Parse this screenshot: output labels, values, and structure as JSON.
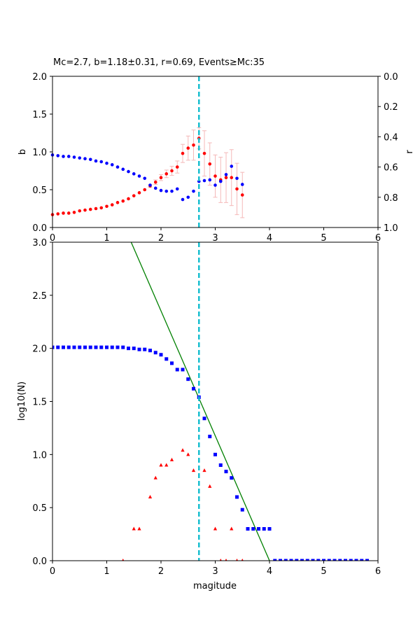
{
  "chart_data": [
    {
      "type": "scatter",
      "title": "Mc=2.7, b=1.18±0.31, r=0.69, Events≥Mc:35",
      "xlabel": "",
      "ylabel": "b",
      "y2label": "r",
      "xlim": [
        0,
        6
      ],
      "ylim": [
        0,
        2
      ],
      "y2lim": [
        1,
        0
      ],
      "xticks": [
        "0",
        "1",
        "2",
        "3",
        "4",
        "5",
        "6"
      ],
      "yticks": [
        "0.0",
        "0.5",
        "1.0",
        "1.5",
        "2.0"
      ],
      "y2ticks": [
        "0.0",
        "0.2",
        "0.4",
        "0.6",
        "0.8",
        "1.0"
      ],
      "mc": 2.7,
      "mc_color": "#17becf",
      "series": [
        {
          "axis": "left",
          "color": "#ff0000",
          "x": [
            0.0,
            0.1,
            0.2,
            0.3,
            0.4,
            0.5,
            0.6,
            0.7,
            0.8,
            0.9,
            1.0,
            1.1,
            1.2,
            1.3,
            1.4,
            1.5,
            1.6,
            1.7,
            1.8,
            1.9,
            2.0,
            2.1,
            2.2,
            2.3,
            2.4,
            2.5,
            2.6,
            2.7,
            2.8,
            2.9,
            3.0,
            3.1,
            3.2,
            3.3,
            3.4,
            3.5
          ],
          "y": [
            0.17,
            0.18,
            0.19,
            0.19,
            0.2,
            0.22,
            0.23,
            0.24,
            0.25,
            0.26,
            0.28,
            0.3,
            0.33,
            0.35,
            0.38,
            0.42,
            0.46,
            0.5,
            0.55,
            0.6,
            0.66,
            0.71,
            0.75,
            0.8,
            0.98,
            1.05,
            1.09,
            1.18,
            0.98,
            0.84,
            0.68,
            0.63,
            0.66,
            0.66,
            0.51,
            0.43
          ],
          "err": [
            0,
            0,
            0,
            0,
            0,
            0,
            0,
            0,
            0,
            0,
            0,
            0,
            0,
            0,
            0,
            0,
            0,
            0,
            0.02,
            0.03,
            0.04,
            0.05,
            0.06,
            0.08,
            0.12,
            0.16,
            0.2,
            0.14,
            0.3,
            0.28,
            0.28,
            0.3,
            0.33,
            0.37,
            0.34,
            0.3
          ],
          "err_color": "#f4b8b8"
        },
        {
          "axis": "right",
          "color": "#0000ff",
          "x": [
            0.0,
            0.1,
            0.2,
            0.3,
            0.4,
            0.5,
            0.6,
            0.7,
            0.8,
            0.9,
            1.0,
            1.1,
            1.2,
            1.3,
            1.4,
            1.5,
            1.6,
            1.7,
            1.8,
            1.9,
            2.0,
            2.1,
            2.2,
            2.3,
            2.4,
            2.5,
            2.6,
            2.7,
            2.8,
            2.9,
            3.0,
            3.1,
            3.2,
            3.3,
            3.4,
            3.5
          ],
          "y": [
            0.52,
            0.525,
            0.53,
            0.53,
            0.535,
            0.54,
            0.545,
            0.55,
            0.56,
            0.565,
            0.575,
            0.585,
            0.6,
            0.615,
            0.63,
            0.645,
            0.66,
            0.675,
            0.72,
            0.74,
            0.755,
            0.76,
            0.76,
            0.745,
            0.815,
            0.8,
            0.76,
            0.695,
            0.69,
            0.685,
            0.72,
            0.695,
            0.65,
            0.595,
            0.675,
            0.715
          ]
        }
      ]
    },
    {
      "type": "scatter",
      "title": "",
      "xlabel": "magitude",
      "ylabel": "log10(N)",
      "xlim": [
        0,
        6
      ],
      "ylim": [
        0,
        3
      ],
      "xticks": [
        "0",
        "1",
        "2",
        "3",
        "4",
        "5",
        "6"
      ],
      "yticks": [
        "0.0",
        "0.5",
        "1.0",
        "1.5",
        "2.0",
        "2.5",
        "3.0"
      ],
      "mc": 2.7,
      "mc_color": "#17becf",
      "fit_line": {
        "color": "#008000",
        "x": [
          1.45,
          4.0
        ],
        "y": [
          3.0,
          0.0
        ]
      },
      "series": [
        {
          "marker": "square",
          "color": "#0000ff",
          "x": [
            0.0,
            0.1,
            0.2,
            0.3,
            0.4,
            0.5,
            0.6,
            0.7,
            0.8,
            0.9,
            1.0,
            1.1,
            1.2,
            1.3,
            1.4,
            1.5,
            1.6,
            1.7,
            1.8,
            1.9,
            2.0,
            2.1,
            2.2,
            2.3,
            2.4,
            2.5,
            2.6,
            2.7,
            2.8,
            2.9,
            3.0,
            3.1,
            3.2,
            3.3,
            3.4,
            3.5,
            3.6,
            3.7,
            3.8,
            3.9,
            4.0,
            4.1,
            4.2,
            4.3,
            4.4,
            4.5,
            4.6,
            4.7,
            4.8,
            4.9,
            5.0,
            5.1,
            5.2,
            5.3,
            5.4,
            5.5,
            5.6,
            5.7,
            5.8
          ],
          "y": [
            2.01,
            2.01,
            2.01,
            2.01,
            2.01,
            2.01,
            2.01,
            2.01,
            2.01,
            2.01,
            2.01,
            2.01,
            2.01,
            2.01,
            2.0,
            2.0,
            1.99,
            1.99,
            1.98,
            1.96,
            1.94,
            1.9,
            1.86,
            1.8,
            1.8,
            1.71,
            1.62,
            1.54,
            1.34,
            1.17,
            1.0,
            0.9,
            0.84,
            0.78,
            0.6,
            0.48,
            0.3,
            0.3,
            0.3,
            0.3,
            0.3,
            0,
            0,
            0,
            0,
            0,
            0,
            0,
            0,
            0,
            0,
            0,
            0,
            0,
            0,
            0,
            0,
            0,
            0
          ]
        },
        {
          "marker": "triangle",
          "color": "#ff0000",
          "x": [
            1.3,
            1.5,
            1.6,
            1.8,
            1.9,
            2.0,
            2.1,
            2.2,
            2.4,
            2.5,
            2.6,
            2.8,
            2.9,
            3.0,
            3.1,
            3.2,
            3.3,
            3.4,
            3.5
          ],
          "y": [
            0,
            0.3,
            0.3,
            0.6,
            0.78,
            0.9,
            0.9,
            0.95,
            1.04,
            1.0,
            0.85,
            0.85,
            0.7,
            0.3,
            0,
            0,
            0.3,
            0,
            0
          ]
        }
      ]
    }
  ]
}
